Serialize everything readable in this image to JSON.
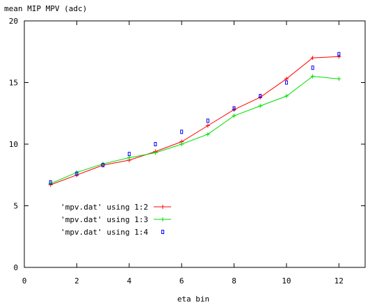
{
  "chart_data": {
    "type": "line",
    "title": "",
    "ylabel": "mean MIP MPV (adc)",
    "xlabel": "eta bin",
    "xlim": [
      0,
      13
    ],
    "ylim": [
      0,
      20
    ],
    "xticks": [
      0,
      2,
      4,
      6,
      8,
      10,
      12
    ],
    "yticks": [
      0,
      5,
      10,
      15,
      20
    ],
    "grid": false,
    "legend_position": "bottom-left",
    "series": [
      {
        "name": "'mpv.dat' using 1:2",
        "style": "linespoints",
        "marker": "plus",
        "color": "#ff0000",
        "x": [
          1,
          2,
          3,
          4,
          5,
          6,
          7,
          8,
          9,
          10,
          11,
          12
        ],
        "y": [
          6.7,
          7.5,
          8.3,
          8.7,
          9.4,
          10.2,
          11.5,
          12.8,
          13.8,
          15.3,
          17.0,
          17.1
        ]
      },
      {
        "name": "'mpv.dat' using 1:3",
        "style": "linespoints",
        "marker": "plus",
        "color": "#00dd00",
        "x": [
          1,
          2,
          3,
          4,
          5,
          6,
          7,
          8,
          9,
          10,
          11,
          12
        ],
        "y": [
          6.8,
          7.7,
          8.4,
          8.9,
          9.3,
          10.0,
          10.8,
          12.3,
          13.1,
          13.9,
          15.5,
          15.3
        ]
      },
      {
        "name": "'mpv.dat' using 1:4",
        "style": "points",
        "marker": "square",
        "color": "#0000ff",
        "x": [
          1,
          2,
          3,
          4,
          5,
          6,
          7,
          8,
          9,
          10,
          11,
          12
        ],
        "y": [
          6.9,
          7.6,
          8.3,
          9.2,
          10.0,
          11.0,
          11.9,
          12.9,
          13.9,
          15.0,
          16.2,
          17.3
        ]
      }
    ]
  }
}
